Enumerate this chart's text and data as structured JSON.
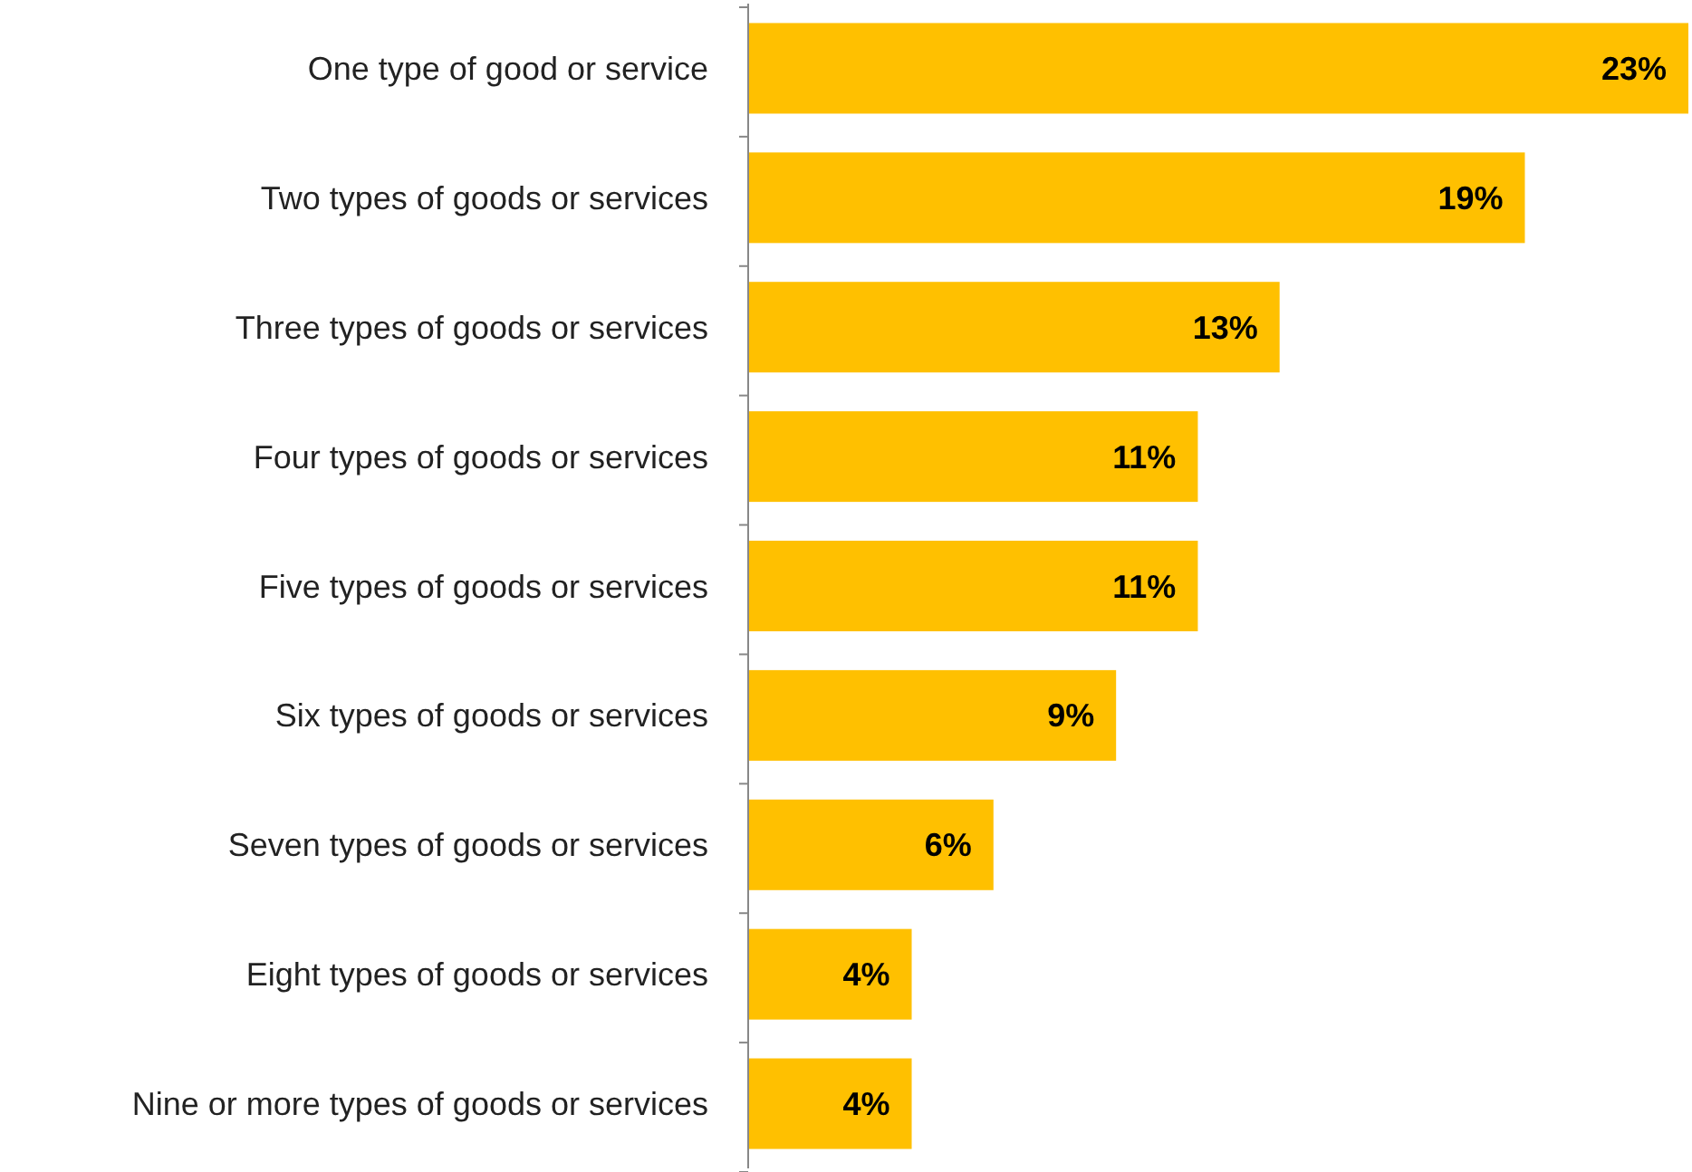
{
  "chart_data": {
    "type": "bar",
    "orientation": "horizontal",
    "categories": [
      "One type of good or service",
      "Two types of goods or services",
      "Three types of goods or services",
      "Four types of goods or services",
      "Five types of goods or services",
      "Six types of goods or services",
      "Seven types of goods or services",
      "Eight types of goods or services",
      "Nine or more types of goods or services"
    ],
    "values": [
      23,
      19,
      13,
      11,
      11,
      9,
      6,
      4,
      4
    ],
    "value_labels": [
      "23%",
      "19%",
      "13%",
      "11%",
      "11%",
      "9%",
      "6%",
      "4%",
      "4%"
    ],
    "color": "#ffc000"
  }
}
